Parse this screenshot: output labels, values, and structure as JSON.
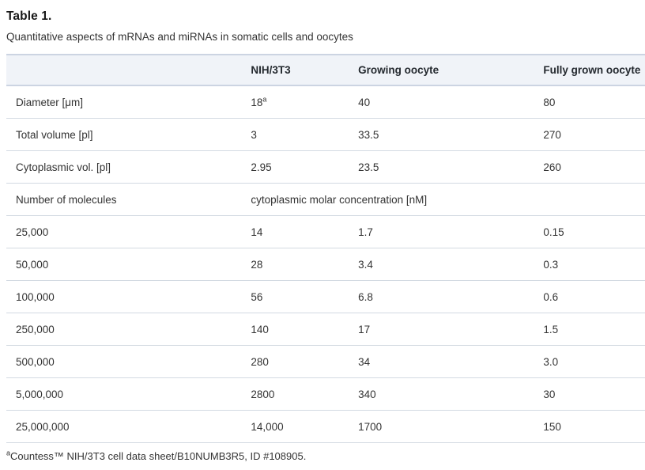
{
  "title": "Table 1.",
  "subtitle": "Quantitative aspects of mRNAs and miRNAs in somatic cells and oocytes",
  "table": {
    "columns": [
      "",
      "NIH/3T3",
      "Growing oocyte",
      "Fully grown oocyte"
    ],
    "rows": [
      {
        "cells": [
          {
            "text": "Diameter [μm]"
          },
          {
            "text": "18",
            "sup": "a"
          },
          {
            "text": "40"
          },
          {
            "text": "80"
          }
        ]
      },
      {
        "cells": [
          {
            "text": "Total volume [pl]"
          },
          {
            "text": "3"
          },
          {
            "text": "33.5"
          },
          {
            "text": "270"
          }
        ]
      },
      {
        "cells": [
          {
            "text": "Cytoplasmic vol. [pl]"
          },
          {
            "text": "2.95"
          },
          {
            "text": "23.5"
          },
          {
            "text": "260"
          }
        ]
      },
      {
        "cells": [
          {
            "text": "Number of molecules"
          },
          {
            "text": "cytoplasmic molar concentration [nM]",
            "colspan": 3
          }
        ]
      },
      {
        "cells": [
          {
            "text": "25,000"
          },
          {
            "text": "14"
          },
          {
            "text": "1.7"
          },
          {
            "text": "0.15"
          }
        ]
      },
      {
        "cells": [
          {
            "text": "50,000"
          },
          {
            "text": "28"
          },
          {
            "text": "3.4"
          },
          {
            "text": "0.3"
          }
        ]
      },
      {
        "cells": [
          {
            "text": "100,000"
          },
          {
            "text": "56"
          },
          {
            "text": "6.8"
          },
          {
            "text": "0.6"
          }
        ]
      },
      {
        "cells": [
          {
            "text": "250,000"
          },
          {
            "text": "140"
          },
          {
            "text": "17"
          },
          {
            "text": "1.5"
          }
        ]
      },
      {
        "cells": [
          {
            "text": "500,000"
          },
          {
            "text": "280"
          },
          {
            "text": "34"
          },
          {
            "text": "3.0"
          }
        ]
      },
      {
        "cells": [
          {
            "text": "5,000,000"
          },
          {
            "text": "2800"
          },
          {
            "text": "340"
          },
          {
            "text": "30"
          }
        ]
      },
      {
        "cells": [
          {
            "text": "25,000,000"
          },
          {
            "text": "14,000"
          },
          {
            "text": "1700"
          },
          {
            "text": "150"
          }
        ]
      }
    ]
  },
  "footnote": {
    "marker": "a",
    "text": "Countess™ NIH/3T3 cell data sheet/B10NUMB3R5, ID #108905."
  },
  "colors": {
    "header_bg": "#f0f3f8",
    "header_border": "#ccd4e2",
    "row_border": "#d3dae2",
    "body_text": "#333333",
    "header_text": "#24292f"
  }
}
